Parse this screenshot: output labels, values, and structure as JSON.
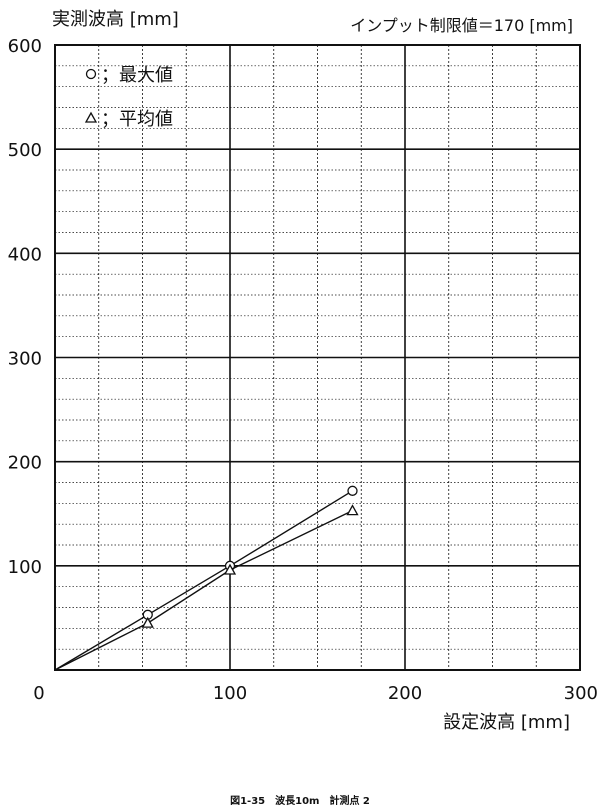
{
  "chart_data": {
    "type": "line",
    "ylabel": "実測波高 [mm]",
    "xlabel": "設定波高 [mm]",
    "annotation": "インプット制限値＝170 [mm]",
    "caption": "図1-35　波長10m　計測点 2",
    "xlim": [
      0,
      300
    ],
    "ylim": [
      0,
      600
    ],
    "x_ticks": [
      0,
      100,
      200,
      300
    ],
    "y_ticks": [
      100,
      200,
      300,
      400,
      500,
      600
    ],
    "grid": true,
    "legend_position": "top-left",
    "series": [
      {
        "name": "；最大値",
        "marker": "circle",
        "points": [
          [
            0,
            0
          ],
          [
            53,
            53
          ],
          [
            100,
            100
          ],
          [
            170,
            172
          ]
        ]
      },
      {
        "name": "；平均値",
        "marker": "triangle",
        "points": [
          [
            0,
            0
          ],
          [
            53,
            45
          ],
          [
            100,
            96
          ],
          [
            170,
            153
          ]
        ]
      }
    ]
  }
}
